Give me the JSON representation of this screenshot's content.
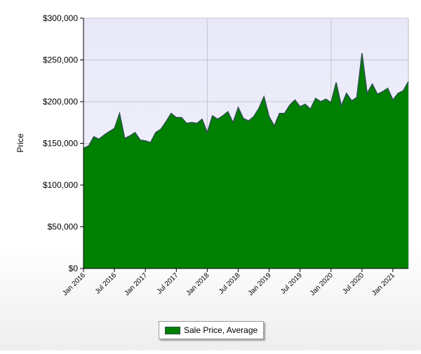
{
  "chart_data": {
    "type": "area",
    "title": "",
    "ylabel": "Price",
    "xlabel": "",
    "ylim": [
      0,
      300000
    ],
    "yticks": [
      0,
      50000,
      100000,
      150000,
      200000,
      250000,
      300000
    ],
    "ytick_labels": [
      "$0",
      "$50,000",
      "$100,000",
      "$150,000",
      "$200,000",
      "$250,000",
      "$300,000"
    ],
    "xrange": [
      "2016-01",
      "2021-04"
    ],
    "xtick_labels": [
      "Jan 2016",
      "Jul 2016",
      "Jan 2017",
      "Jul 2017",
      "Jan 2018",
      "Jul 2018",
      "Jan 2019",
      "Jul 2019",
      "Jan 2020",
      "Jul 2020",
      "Jan 2021"
    ],
    "grid": true,
    "legend_position": "bottom-center",
    "series": [
      {
        "name": "Sale Price, Average",
        "color": "#008000",
        "x": [
          "2016-01",
          "2016-02",
          "2016-03",
          "2016-04",
          "2016-05",
          "2016-06",
          "2016-07",
          "2016-08",
          "2016-09",
          "2016-10",
          "2016-11",
          "2016-12",
          "2017-01",
          "2017-02",
          "2017-03",
          "2017-04",
          "2017-05",
          "2017-06",
          "2017-07",
          "2017-08",
          "2017-09",
          "2017-10",
          "2017-11",
          "2017-12",
          "2018-01",
          "2018-02",
          "2018-03",
          "2018-04",
          "2018-05",
          "2018-06",
          "2018-07",
          "2018-08",
          "2018-09",
          "2018-10",
          "2018-11",
          "2018-12",
          "2019-01",
          "2019-02",
          "2019-03",
          "2019-04",
          "2019-05",
          "2019-06",
          "2019-07",
          "2019-08",
          "2019-09",
          "2019-10",
          "2019-11",
          "2019-12",
          "2020-01",
          "2020-02",
          "2020-03",
          "2020-04",
          "2020-05",
          "2020-06",
          "2020-07",
          "2020-08",
          "2020-09",
          "2020-10",
          "2020-11",
          "2020-12",
          "2021-01",
          "2021-02",
          "2021-03",
          "2021-04"
        ],
        "values": [
          144000,
          147000,
          158000,
          155000,
          160000,
          164000,
          168000,
          186000,
          156000,
          159000,
          163000,
          154000,
          153000,
          151000,
          163000,
          167000,
          176000,
          186000,
          181000,
          181000,
          174000,
          175000,
          174000,
          179000,
          163000,
          183000,
          179000,
          183000,
          188000,
          175000,
          193000,
          180000,
          177000,
          182000,
          192000,
          206000,
          182000,
          171000,
          186000,
          186000,
          196000,
          202000,
          194000,
          197000,
          191000,
          204000,
          200000,
          203000,
          199000,
          223000,
          195000,
          210000,
          201000,
          205000,
          258000,
          210000,
          221000,
          209000,
          212000,
          216000,
          202000,
          210000,
          213000,
          224000
        ]
      }
    ]
  },
  "legend": {
    "label": "Sale Price, Average"
  }
}
